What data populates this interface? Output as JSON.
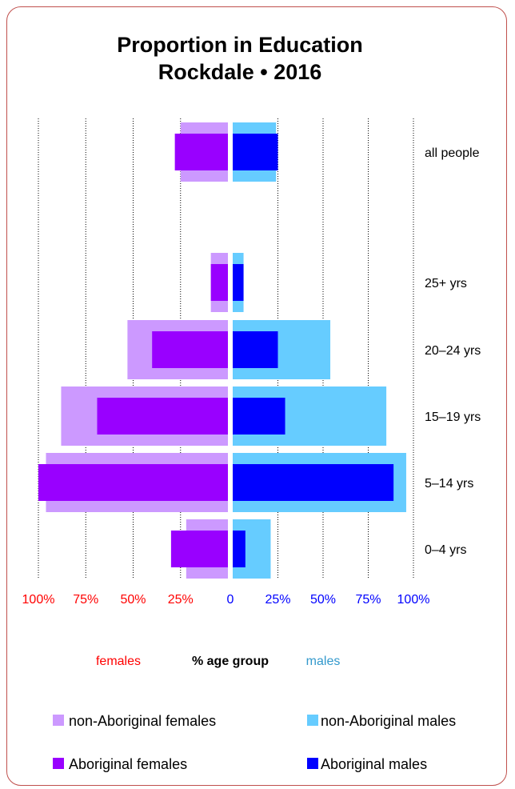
{
  "chart_data": {
    "type": "bar",
    "orientation": "horizontal-butterfly",
    "title": [
      "Proportion in Education",
      "Rockdale • 2016"
    ],
    "categories": [
      "all people",
      "25+ yrs",
      "20–24 yrs",
      "15–19 yrs",
      "5–14 yrs",
      "0–4 yrs"
    ],
    "series": [
      {
        "name": "non-Aboriginal females",
        "side": "left",
        "color": "#cc99ff",
        "values": [
          25,
          9,
          53,
          88,
          96,
          22
        ]
      },
      {
        "name": "Aboriginal females",
        "side": "left",
        "color": "#9900ff",
        "values": [
          28,
          9,
          40,
          69,
          100,
          30
        ]
      },
      {
        "name": "non-Aboriginal males",
        "side": "right",
        "color": "#66ccff",
        "values": [
          24,
          6,
          54,
          85,
          96,
          21
        ]
      },
      {
        "name": "Aboriginal males",
        "side": "right",
        "color": "#0000ff",
        "values": [
          25,
          6,
          25,
          29,
          89,
          7
        ]
      }
    ],
    "left_ticks": [
      "100%",
      "75%",
      "50%",
      "25%"
    ],
    "zero_tick": "0",
    "right_ticks": [
      "25%",
      "50%",
      "75%",
      "100%"
    ],
    "xlim": [
      -100,
      100
    ],
    "axis_words": {
      "left": "females",
      "center": "% age group",
      "right": "males"
    },
    "colors": {
      "left_text": "#ff0000",
      "right_text": "#0000ff",
      "males_word": "#3399cc"
    },
    "grid": true,
    "legend_placement": "bottom"
  }
}
